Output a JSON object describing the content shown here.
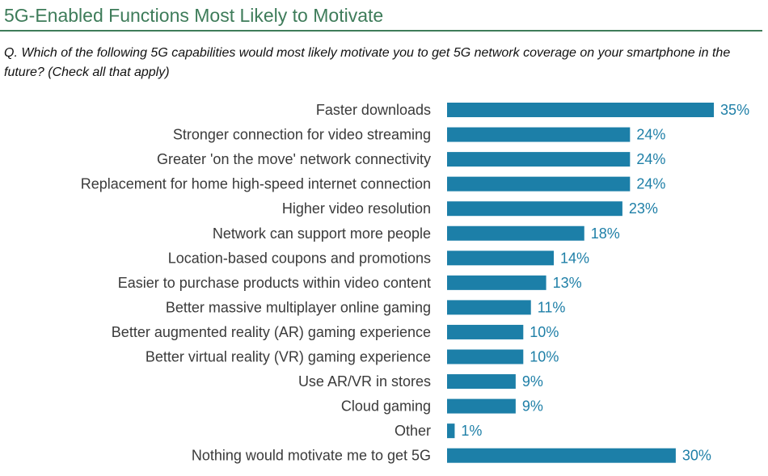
{
  "header": {
    "title": "5G-Enabled Functions Most Likely to Motivate",
    "question": "Q. Which of the following 5G capabilities would most likely motivate you to get 5G network coverage on your smartphone in the future? (Check all that apply)"
  },
  "colors": {
    "title": "#3e7c5a",
    "bar": "#1c7fa8",
    "value_label": "#1e7fa7",
    "category_label": "#3a3a3a"
  },
  "chart_data": {
    "type": "bar",
    "orientation": "horizontal",
    "categories": [
      "Faster downloads",
      "Stronger connection for video streaming",
      "Greater 'on the move' network connectivity",
      "Replacement for home high-speed internet connection",
      "Higher video resolution",
      "Network can support more people",
      "Location-based coupons and promotions",
      "Easier to purchase products within video content",
      "Better massive multiplayer online gaming",
      "Better augmented reality (AR) gaming experience",
      "Better virtual reality (VR) gaming experience",
      "Use AR/VR in stores",
      "Cloud gaming",
      "Other",
      "Nothing would motivate me to get 5G"
    ],
    "values": [
      35,
      24,
      24,
      24,
      23,
      18,
      14,
      13,
      11,
      10,
      10,
      9,
      9,
      1,
      30
    ],
    "value_labels": [
      "35%",
      "24%",
      "24%",
      "24%",
      "23%",
      "18%",
      "14%",
      "13%",
      "11%",
      "10%",
      "10%",
      "9%",
      "9%",
      "1%",
      "30%"
    ],
    "xlim": [
      0,
      35
    ],
    "grid": false,
    "legend": "none"
  }
}
